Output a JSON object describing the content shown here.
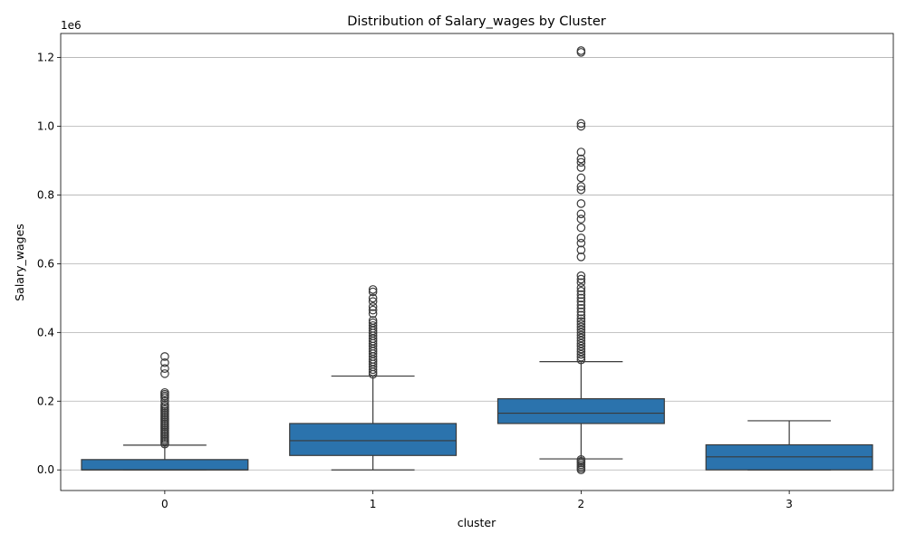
{
  "chart_data": {
    "type": "box",
    "title": "Distribution of Salary_wages by Cluster",
    "xlabel": "cluster",
    "ylabel": "Salary_wages",
    "y_offset_label": "1e6",
    "ylim": [
      -60000,
      1270000
    ],
    "yticks": [
      0,
      200000,
      400000,
      600000,
      800000,
      1000000,
      1200000
    ],
    "ytick_labels": [
      "0.0",
      "0.2",
      "0.4",
      "0.6",
      "0.8",
      "1.0",
      "1.2"
    ],
    "grid": "horizontal",
    "box_color": "#2b73ad",
    "categories": [
      "0",
      "1",
      "2",
      "3"
    ],
    "boxes": [
      {
        "cluster": "0",
        "whisker_low": 0,
        "q1": 0,
        "median": 0,
        "q3": 30000,
        "whisker_high": 72000,
        "outliers": [
          75000,
          80000,
          85000,
          90000,
          95000,
          100000,
          105000,
          110000,
          115000,
          120000,
          125000,
          130000,
          135000,
          140000,
          145000,
          150000,
          155000,
          160000,
          165000,
          170000,
          175000,
          180000,
          185000,
          190000,
          200000,
          210000,
          215000,
          220000,
          225000,
          280000,
          295000,
          312000,
          330000
        ]
      },
      {
        "cluster": "1",
        "whisker_low": 0,
        "q1": 42000,
        "median": 85000,
        "q3": 135000,
        "whisker_high": 273000,
        "outliers": [
          278000,
          285000,
          292000,
          300000,
          308000,
          315000,
          322000,
          330000,
          338000,
          345000,
          352000,
          360000,
          368000,
          375000,
          382000,
          390000,
          398000,
          405000,
          412000,
          420000,
          428000,
          435000,
          455000,
          465000,
          475000,
          490000,
          500000,
          518000,
          525000
        ]
      },
      {
        "cluster": "2",
        "whisker_low": 32000,
        "q1": 135000,
        "median": 165000,
        "q3": 207000,
        "whisker_high": 315000,
        "outliers": [
          0,
          5000,
          10000,
          15000,
          20000,
          25000,
          30000,
          320000,
          328000,
          336000,
          344000,
          352000,
          360000,
          368000,
          376000,
          384000,
          392000,
          400000,
          408000,
          416000,
          424000,
          432000,
          440000,
          450000,
          460000,
          470000,
          480000,
          490000,
          500000,
          510000,
          520000,
          530000,
          545000,
          555000,
          565000,
          620000,
          640000,
          660000,
          675000,
          705000,
          730000,
          745000,
          775000,
          815000,
          825000,
          850000,
          880000,
          895000,
          905000,
          925000,
          1000000,
          1008000,
          1215000,
          1220000
        ]
      },
      {
        "cluster": "3",
        "whisker_low": 0,
        "q1": 0,
        "median": 38000,
        "q3": 73000,
        "whisker_high": 143000,
        "outliers": []
      }
    ]
  }
}
